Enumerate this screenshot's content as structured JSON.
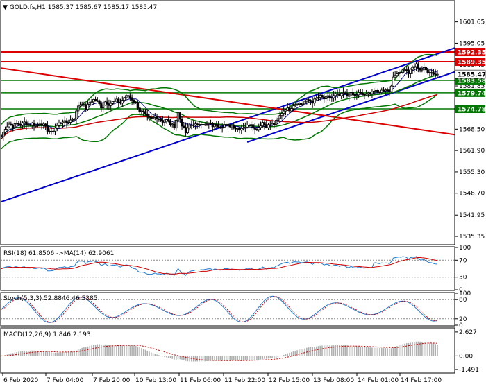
{
  "header": {
    "symbol": "GOLD.fs,H1",
    "ohlc": "1585.37 1585.67 1585.17 1585.47"
  },
  "colors": {
    "bull": "#000000",
    "bear": "#000000",
    "bollinger": "#007700",
    "trend_blue": "#0000cc",
    "resistance_red": "#dd0000",
    "support_green": "#007700",
    "ma_slow": "#cc0000",
    "ma_fast": "#000080",
    "rsi": "#1e7bd0",
    "rsi_ma": "#cc0000",
    "stoch_main": "#1e7bd0",
    "stoch_signal": "#cc0000",
    "macd_hist": "#b0b0b0",
    "macd_signal": "#cc0000",
    "label_red": "#dd0000",
    "label_green": "#007700"
  },
  "chart_data": [
    {
      "type": "candlestick",
      "id": "price",
      "ylim": [
        1533,
        1608
      ],
      "y_ticks": [
        "1601.65",
        "1595.05",
        "1588.45",
        "1581.85",
        "1575.25",
        "1568.50",
        "1561.90",
        "1555.30",
        "1548.70",
        "1541.95",
        "1535.35"
      ],
      "x_ticks": [
        "6 Feb 2020",
        "7 Feb 04:00",
        "7 Feb 20:00",
        "10 Feb 13:00",
        "11 Feb 06:00",
        "11 Feb 22:00",
        "12 Feb 15:00",
        "13 Feb 08:00",
        "14 Feb 01:00",
        "14 Feb 17:00"
      ],
      "closes_hourly": [
        1566.2,
        1568.8,
        1570.1,
        1569.4,
        1570.3,
        1569.8,
        1570.6,
        1569.9,
        1570.2,
        1569.5,
        1570.4,
        1569.7,
        1568.2,
        1567.4,
        1568.9,
        1570.2,
        1571.0,
        1570.4,
        1571.3,
        1572.0,
        1575.8,
        1576.5,
        1574.9,
        1576.8,
        1577.6,
        1577.1,
        1575.4,
        1577.0,
        1576.2,
        1576.9,
        1577.4,
        1576.6,
        1578.3,
        1578.9,
        1577.7,
        1576.5,
        1574.2,
        1573.6,
        1572.0,
        1571.6,
        1572.4,
        1571.8,
        1570.9,
        1571.3,
        1570.1,
        1569.3,
        1573.5,
        1569.8,
        1567.4,
        1569.6,
        1570.1,
        1569.6,
        1570.4,
        1569.8,
        1570.2,
        1569.5,
        1569.9,
        1569.2,
        1569.8,
        1569.5,
        1569.6,
        1568.8,
        1568.6,
        1569.1,
        1569.5,
        1570.2,
        1568.4,
        1569.1,
        1570.6,
        1569.4,
        1569.9,
        1570.1,
        1571.6,
        1573.6,
        1574.9,
        1574.5,
        1576.0,
        1576.6,
        1576.2,
        1577.1,
        1577.4,
        1576.9,
        1578.0,
        1578.6,
        1577.9,
        1578.5,
        1578.2,
        1579.2,
        1578.8,
        1579.6,
        1578.9,
        1579.4,
        1578.8,
        1579.6,
        1579.2,
        1579.1,
        1579.9,
        1580.3,
        1579.8,
        1580.4,
        1580.9,
        1580.3,
        1584.2,
        1586.0,
        1586.3,
        1587.1,
        1585.8,
        1587.5,
        1588.4,
        1586.9,
        1587.2,
        1586.4,
        1586.0,
        1585.47
      ],
      "lines": {
        "resistance": [
          {
            "value": 1592.35,
            "color": "#dd0000",
            "label": "1592.35"
          },
          {
            "value": 1589.35,
            "color": "#dd0000",
            "label": "1589.35"
          }
        ],
        "support": [
          {
            "value": 1583.58,
            "color": "#007700",
            "label": "1583.58"
          },
          {
            "value": 1579.74,
            "color": "#007700",
            "label": "1579.74"
          },
          {
            "value": 1574.78,
            "color": "#007700",
            "label": "1574.78"
          }
        ],
        "current": {
          "value": 1585.47,
          "label": "1585.47"
        }
      }
    },
    {
      "type": "line",
      "id": "rsi",
      "title": "RSI(18) 61.8506  ->MA(14) 62.9061",
      "ylim": [
        0,
        100
      ],
      "y_ticks": [
        "100",
        "70",
        "30",
        "0"
      ],
      "levels": [
        70,
        30
      ]
    },
    {
      "type": "line",
      "id": "stoch",
      "title": "Stoch(5,3,3) 52.8846 46.5385",
      "ylim": [
        0,
        100
      ],
      "y_ticks": [
        "100",
        "80",
        "20",
        "0"
      ],
      "levels": [
        80,
        20
      ]
    },
    {
      "type": "bar",
      "id": "macd",
      "title": "MACD(12,26,9) 1.846 2.193",
      "ylim": [
        -1.8,
        3.0
      ],
      "y_ticks": [
        "2.627",
        "0.00",
        "-1.491"
      ]
    }
  ]
}
